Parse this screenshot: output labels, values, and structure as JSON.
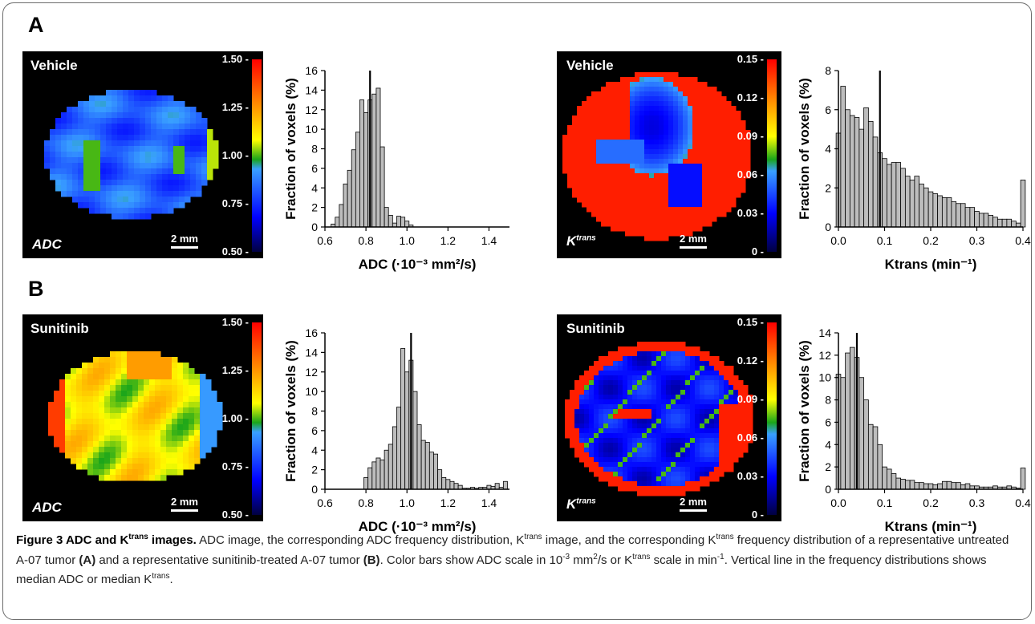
{
  "panels": [
    {
      "letter": "A"
    },
    {
      "letter": "B"
    }
  ],
  "maps": {
    "adc_vehicle": {
      "title": "Vehicle",
      "symbol": "ADC",
      "scalebar": "2 mm",
      "ticks": [
        "1.50",
        "1.25",
        "1.00",
        "0.75",
        "0.50"
      ]
    },
    "ktrans_vehicle": {
      "title": "Vehicle",
      "symbol": "K",
      "symbol_sup": "trans",
      "scalebar": "2 mm",
      "ticks": [
        "0.15",
        "0.12",
        "0.09",
        "0.06",
        "0.03",
        "0"
      ]
    },
    "adc_sunitinib": {
      "title": "Sunitinib",
      "symbol": "ADC",
      "scalebar": "2 mm",
      "ticks": [
        "1.50",
        "1.25",
        "1.00",
        "0.75",
        "0.50"
      ]
    },
    "ktrans_sunitinib": {
      "title": "Sunitinib",
      "symbol": "K",
      "symbol_sup": "trans",
      "scalebar": "2 mm",
      "ticks": [
        "0.15",
        "0.12",
        "0.09",
        "0.06",
        "0.03",
        "0"
      ]
    }
  },
  "chart_data": [
    {
      "id": "adc-vehicle-histogram",
      "type": "bar",
      "panel": "A",
      "ylabel": "Fraction of voxels (%)",
      "xlabel": "ADC (·10⁻³ mm²/s)",
      "xlim": [
        0.6,
        1.5
      ],
      "ylim": [
        0,
        16
      ],
      "xticks": [
        "0.6",
        "0.8",
        "1.0",
        "1.2",
        "1.4"
      ],
      "yticks": [
        "0",
        "2",
        "4",
        "6",
        "8",
        "10",
        "12",
        "14",
        "16"
      ],
      "bin_width": 0.02,
      "x": [
        0.64,
        0.66,
        0.68,
        0.7,
        0.72,
        0.74,
        0.76,
        0.78,
        0.8,
        0.82,
        0.84,
        0.86,
        0.88,
        0.9,
        0.92,
        0.94,
        0.96,
        0.98,
        1.0,
        1.02
      ],
      "values": [
        0.3,
        1.0,
        2.3,
        4.4,
        5.8,
        7.9,
        9.7,
        13.0,
        11.7,
        13.0,
        13.6,
        14.2,
        8.2,
        2.0,
        1.2,
        0.4,
        1.1,
        1.0,
        0.6,
        0.2
      ],
      "median": 0.82
    },
    {
      "id": "ktrans-vehicle-histogram",
      "type": "bar",
      "panel": "A",
      "ylabel": "Fraction of voxels (%)",
      "xlabel": "Ktrans (min⁻¹)",
      "xlim": [
        0.0,
        0.4
      ],
      "ylim": [
        0,
        8
      ],
      "xticks": [
        "0.0",
        "0.1",
        "0.2",
        "0.3",
        "0.4"
      ],
      "yticks": [
        "0",
        "2",
        "4",
        "6",
        "8"
      ],
      "bin_width": 0.01,
      "x": [
        0.0,
        0.01,
        0.02,
        0.03,
        0.04,
        0.05,
        0.06,
        0.07,
        0.08,
        0.09,
        0.1,
        0.11,
        0.12,
        0.13,
        0.14,
        0.15,
        0.16,
        0.17,
        0.18,
        0.19,
        0.2,
        0.21,
        0.22,
        0.23,
        0.24,
        0.25,
        0.26,
        0.27,
        0.28,
        0.29,
        0.3,
        0.31,
        0.32,
        0.33,
        0.34,
        0.35,
        0.36,
        0.37,
        0.38,
        0.39,
        0.4
      ],
      "values": [
        4.8,
        7.2,
        6.0,
        5.7,
        5.6,
        5.0,
        6.1,
        5.4,
        4.6,
        3.8,
        3.5,
        3.2,
        3.3,
        3.3,
        3.0,
        2.6,
        2.4,
        2.6,
        2.2,
        2.0,
        1.8,
        1.7,
        1.6,
        1.5,
        1.5,
        1.3,
        1.2,
        1.2,
        1.0,
        1.0,
        0.8,
        0.7,
        0.7,
        0.6,
        0.5,
        0.4,
        0.4,
        0.4,
        0.3,
        0.2,
        2.4
      ],
      "median": 0.09
    },
    {
      "id": "adc-sunitinib-histogram",
      "type": "bar",
      "panel": "B",
      "ylabel": "Fraction of voxels (%)",
      "xlabel": "ADC (·10⁻³ mm²/s)",
      "xlim": [
        0.6,
        1.5
      ],
      "ylim": [
        0,
        16
      ],
      "xticks": [
        "0.6",
        "0.8",
        "1.0",
        "1.2",
        "1.4"
      ],
      "yticks": [
        "0",
        "2",
        "4",
        "6",
        "8",
        "10",
        "12",
        "14",
        "16"
      ],
      "bin_width": 0.02,
      "x": [
        0.8,
        0.82,
        0.84,
        0.86,
        0.88,
        0.9,
        0.92,
        0.94,
        0.96,
        0.98,
        1.0,
        1.02,
        1.04,
        1.06,
        1.08,
        1.1,
        1.12,
        1.14,
        1.16,
        1.18,
        1.2,
        1.22,
        1.24,
        1.26,
        1.28,
        1.3,
        1.32,
        1.34,
        1.36,
        1.38,
        1.4,
        1.42,
        1.44,
        1.46,
        1.48
      ],
      "values": [
        1.2,
        2.2,
        2.8,
        3.2,
        3.0,
        4.0,
        4.6,
        6.4,
        8.4,
        14.4,
        12.0,
        13.2,
        10.0,
        6.6,
        5.0,
        4.8,
        3.8,
        3.6,
        2.0,
        1.2,
        1.0,
        0.8,
        0.6,
        0.4,
        0.1,
        0.1,
        0.2,
        0.1,
        0.2,
        0.2,
        0.4,
        0.3,
        0.6,
        0.2,
        0.8
      ],
      "median": 1.02
    },
    {
      "id": "ktrans-sunitinib-histogram",
      "type": "bar",
      "panel": "B",
      "ylabel": "Fraction of voxels (%)",
      "xlabel": "Ktrans (min⁻¹)",
      "xlim": [
        0.0,
        0.4
      ],
      "ylim": [
        0,
        14
      ],
      "xticks": [
        "0.0",
        "0.1",
        "0.2",
        "0.3",
        "0.4"
      ],
      "yticks": [
        "0",
        "2",
        "4",
        "6",
        "8",
        "10",
        "12",
        "14"
      ],
      "bin_width": 0.01,
      "x": [
        0.0,
        0.01,
        0.02,
        0.03,
        0.04,
        0.05,
        0.06,
        0.07,
        0.08,
        0.09,
        0.1,
        0.11,
        0.12,
        0.13,
        0.14,
        0.15,
        0.16,
        0.17,
        0.18,
        0.19,
        0.2,
        0.21,
        0.22,
        0.23,
        0.24,
        0.25,
        0.26,
        0.27,
        0.28,
        0.29,
        0.3,
        0.31,
        0.32,
        0.33,
        0.34,
        0.35,
        0.36,
        0.37,
        0.38,
        0.39,
        0.4
      ],
      "values": [
        10.3,
        10.0,
        12.2,
        12.7,
        11.8,
        10.0,
        8.0,
        5.8,
        5.6,
        4.0,
        2.0,
        1.8,
        1.4,
        1.0,
        0.9,
        0.8,
        0.8,
        0.6,
        0.6,
        0.5,
        0.5,
        0.4,
        0.5,
        0.7,
        0.7,
        0.6,
        0.6,
        0.4,
        0.5,
        0.3,
        0.3,
        0.2,
        0.2,
        0.2,
        0.3,
        0.2,
        0.2,
        0.3,
        0.2,
        0.1,
        1.9
      ],
      "median": 0.04
    }
  ],
  "caption": {
    "label": "Figure 3 ADC and K",
    "label_sup": "trans",
    "label_end": " images.",
    "p1": " ADC image, the corresponding ADC frequency distribution, K",
    "s1": "trans",
    "p2": " image, and the corresponding K",
    "s2": "trans",
    "p3": " frequency distribution of a representative untreated A-07 tumor ",
    "b1": "(A)",
    "p4": " and a representative sunitinib-treated A-07 tumor ",
    "b2": "(B)",
    "p5": ". Color bars show ADC scale in 10",
    "s3": "-3",
    "p6": " mm",
    "s4": "2",
    "p7": "/s or K",
    "s5": "trans",
    "p8": " scale in min",
    "s6": "-1",
    "p9": ". Vertical line in the frequency distributions shows median ADC or median K",
    "s7": "trans",
    "p10": "."
  }
}
